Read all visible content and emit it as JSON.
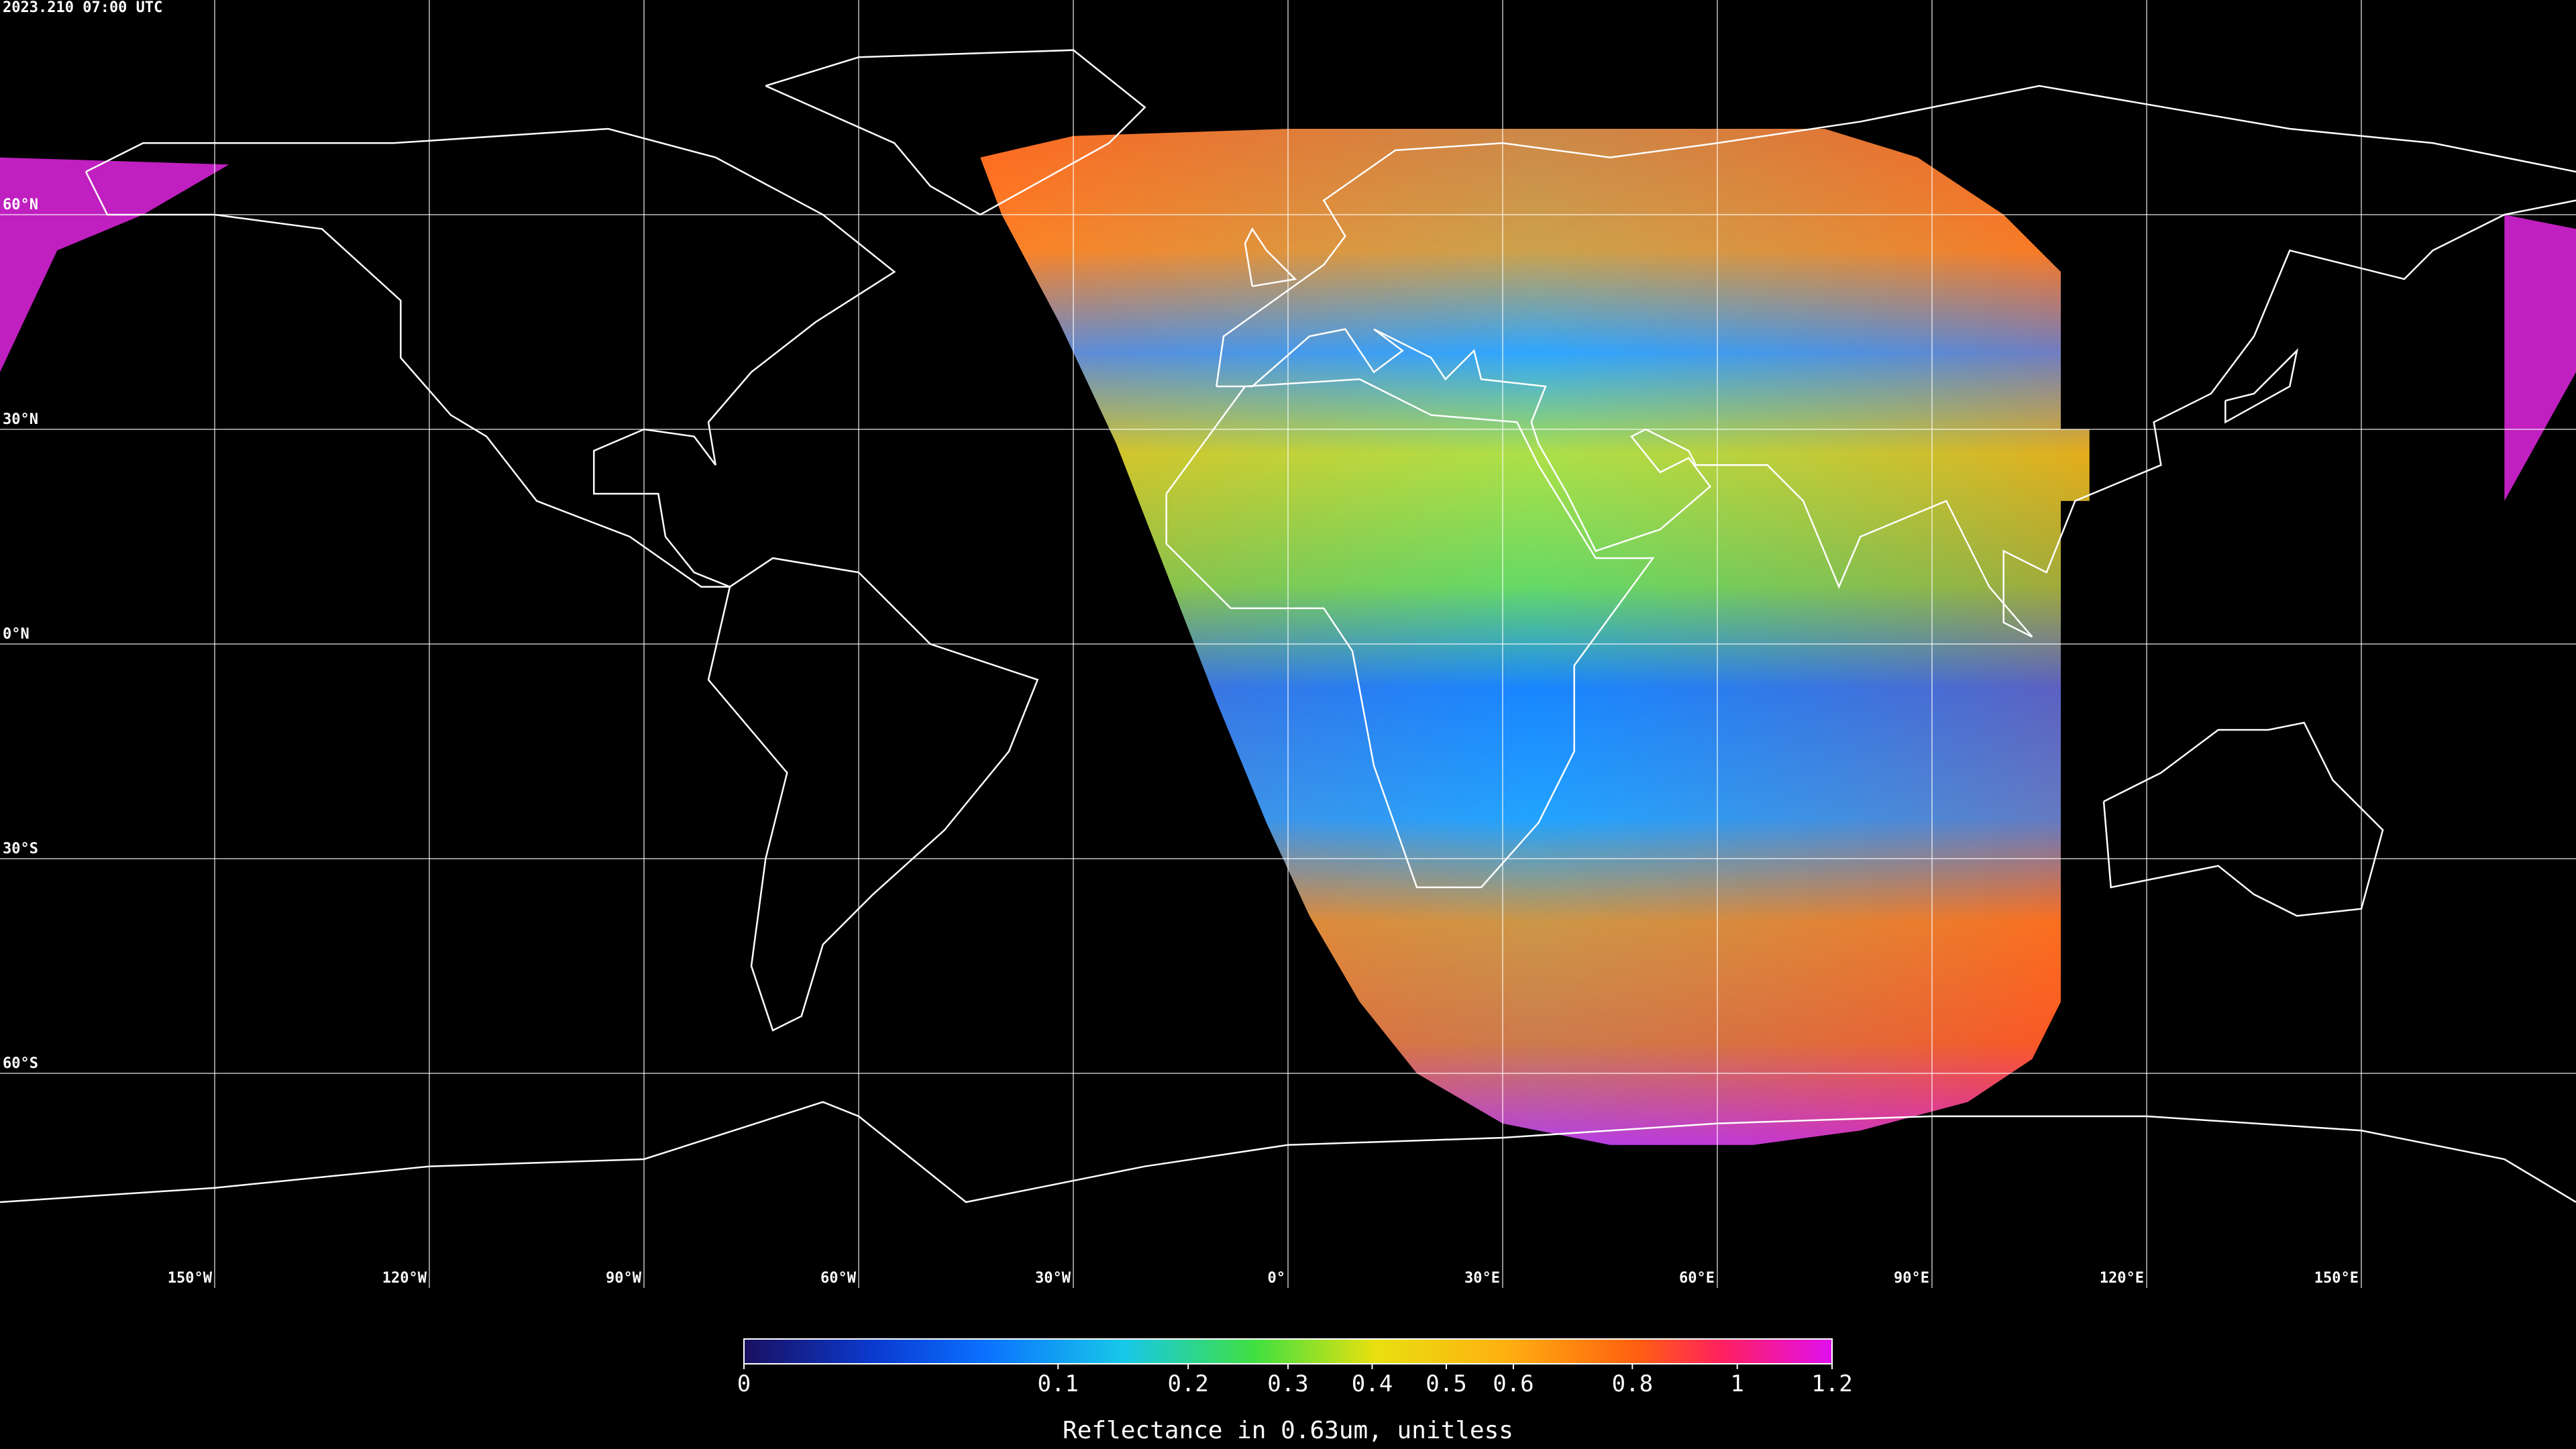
{
  "header": {
    "timestamp": "2023.210 07:00 UTC"
  },
  "map": {
    "xlim": [
      -180,
      180
    ],
    "ylim": [
      -90,
      90
    ],
    "lat_ticks": [
      {
        "value": 60,
        "label": "60°N"
      },
      {
        "value": 30,
        "label": "30°N"
      },
      {
        "value": 0,
        "label": "0°N"
      },
      {
        "value": -30,
        "label": "30°S"
      },
      {
        "value": -60,
        "label": "60°S"
      }
    ],
    "lon_ticks": [
      {
        "value": -150,
        "label": "150°W"
      },
      {
        "value": -120,
        "label": "120°W"
      },
      {
        "value": -90,
        "label": "90°W"
      },
      {
        "value": -60,
        "label": "60°W"
      },
      {
        "value": -30,
        "label": "30°W"
      },
      {
        "value": 0,
        "label": "0°"
      },
      {
        "value": 30,
        "label": "30°E"
      },
      {
        "value": 60,
        "label": "60°E"
      },
      {
        "value": 90,
        "label": "90°E"
      },
      {
        "value": 120,
        "label": "120°E"
      },
      {
        "value": 150,
        "label": "150°E"
      }
    ],
    "grid": true
  },
  "colorbar": {
    "lim": [
      0,
      1.2
    ],
    "scale": "sqrt",
    "ticks": [
      0,
      0.1,
      0.2,
      0.3,
      0.4,
      0.5,
      0.6,
      0.8,
      1,
      1.2
    ],
    "label": "Reflectance in 0.63um, unitless"
  }
}
